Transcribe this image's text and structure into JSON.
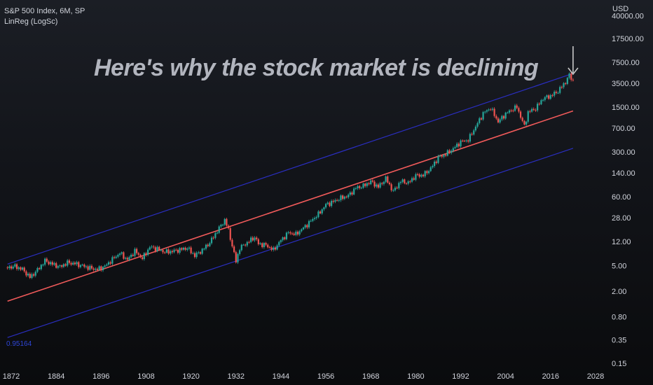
{
  "legend": {
    "symbol_line": "S&P 500 Index, 6M, SP",
    "indicator_line": "LinReg (LogSc)"
  },
  "currency": "USD",
  "headline": "Here's why the stock market is declining",
  "r_value": "0.95164",
  "colors": {
    "up": "#26a69a",
    "down": "#ef5350",
    "regression": "#f05a5a",
    "channel": "#2a2ec0",
    "arrow": "#c8c8c8"
  },
  "chart_data": {
    "type": "candlestick",
    "scale": "log",
    "xlim": [
      1869,
      2031
    ],
    "ylim": [
      0.12,
      70000
    ],
    "x_ticks": [
      1872,
      1884,
      1896,
      1908,
      1920,
      1932,
      1944,
      1956,
      1968,
      1980,
      1992,
      2004,
      2016,
      2028
    ],
    "y_ticks": [
      40000,
      17500,
      7500,
      3500,
      1500,
      700,
      300,
      140,
      60,
      28,
      12,
      5,
      2,
      0.8,
      0.35,
      0.15
    ],
    "y_tick_labels": [
      "40000.00",
      "17500.00",
      "7500.00",
      "3500.00",
      "1500.00",
      "700.00",
      "300.00",
      "140.00",
      "60.00",
      "28.00",
      "12.00",
      "5.00",
      "2.00",
      "0.80",
      "0.35",
      "0.15"
    ],
    "regression": {
      "middle": [
        [
          1871,
          1.4
        ],
        [
          2022,
          1300
        ]
      ],
      "upper": [
        [
          1871,
          5.3
        ],
        [
          2022,
          5000
        ]
      ],
      "lower": [
        [
          1871,
          0.38
        ],
        [
          2022,
          340
        ]
      ]
    },
    "price": [
      [
        1871,
        4.7
      ],
      [
        1873,
        4.9
      ],
      [
        1875,
        4.4
      ],
      [
        1877,
        3.3
      ],
      [
        1879,
        4.3
      ],
      [
        1881,
        6.0
      ],
      [
        1883,
        5.3
      ],
      [
        1885,
        4.8
      ],
      [
        1887,
        5.6
      ],
      [
        1889,
        5.4
      ],
      [
        1891,
        5.0
      ],
      [
        1893,
        4.6
      ],
      [
        1895,
        4.4
      ],
      [
        1897,
        4.9
      ],
      [
        1899,
        6.3
      ],
      [
        1901,
        7.9
      ],
      [
        1903,
        6.2
      ],
      [
        1905,
        8.5
      ],
      [
        1907,
        6.5
      ],
      [
        1909,
        9.8
      ],
      [
        1911,
        9.2
      ],
      [
        1913,
        8.2
      ],
      [
        1915,
        8.4
      ],
      [
        1917,
        8.9
      ],
      [
        1919,
        9.5
      ],
      [
        1921,
        7.2
      ],
      [
        1923,
        8.8
      ],
      [
        1925,
        11.5
      ],
      [
        1927,
        17.5
      ],
      [
        1929,
        26.0
      ],
      [
        1930,
        18.0
      ],
      [
        1932,
        5.8
      ],
      [
        1933,
        9.5
      ],
      [
        1935,
        11.5
      ],
      [
        1937,
        14.0
      ],
      [
        1938,
        11.0
      ],
      [
        1940,
        10.5
      ],
      [
        1942,
        8.8
      ],
      [
        1944,
        12.5
      ],
      [
        1946,
        16.5
      ],
      [
        1948,
        15.5
      ],
      [
        1950,
        19.5
      ],
      [
        1952,
        25.0
      ],
      [
        1954,
        32.0
      ],
      [
        1956,
        45.0
      ],
      [
        1958,
        50.0
      ],
      [
        1960,
        57.0
      ],
      [
        1962,
        62.0
      ],
      [
        1964,
        82.0
      ],
      [
        1966,
        88.0
      ],
      [
        1968,
        103.0
      ],
      [
        1970,
        85.0
      ],
      [
        1972,
        115.0
      ],
      [
        1974,
        72.0
      ],
      [
        1976,
        105.0
      ],
      [
        1978,
        98.0
      ],
      [
        1980,
        128.0
      ],
      [
        1982,
        130.0
      ],
      [
        1984,
        165.0
      ],
      [
        1986,
        245.0
      ],
      [
        1988,
        275.0
      ],
      [
        1990,
        335.0
      ],
      [
        1992,
        430.0
      ],
      [
        1994,
        460.0
      ],
      [
        1996,
        740.0
      ],
      [
        1998,
        1200.0
      ],
      [
        2000,
        1450.0
      ],
      [
        2002,
        880.0
      ],
      [
        2004,
        1180.0
      ],
      [
        2006,
        1400.0
      ],
      [
        2007,
        1500.0
      ],
      [
        2009,
        750.0
      ],
      [
        2010,
        1250.0
      ],
      [
        2012,
        1420.0
      ],
      [
        2014,
        2050.0
      ],
      [
        2016,
        2230.0
      ],
      [
        2018,
        2650.0
      ],
      [
        2020,
        3700.0
      ],
      [
        2021,
        4700.0
      ],
      [
        2022,
        3850.0
      ]
    ]
  }
}
